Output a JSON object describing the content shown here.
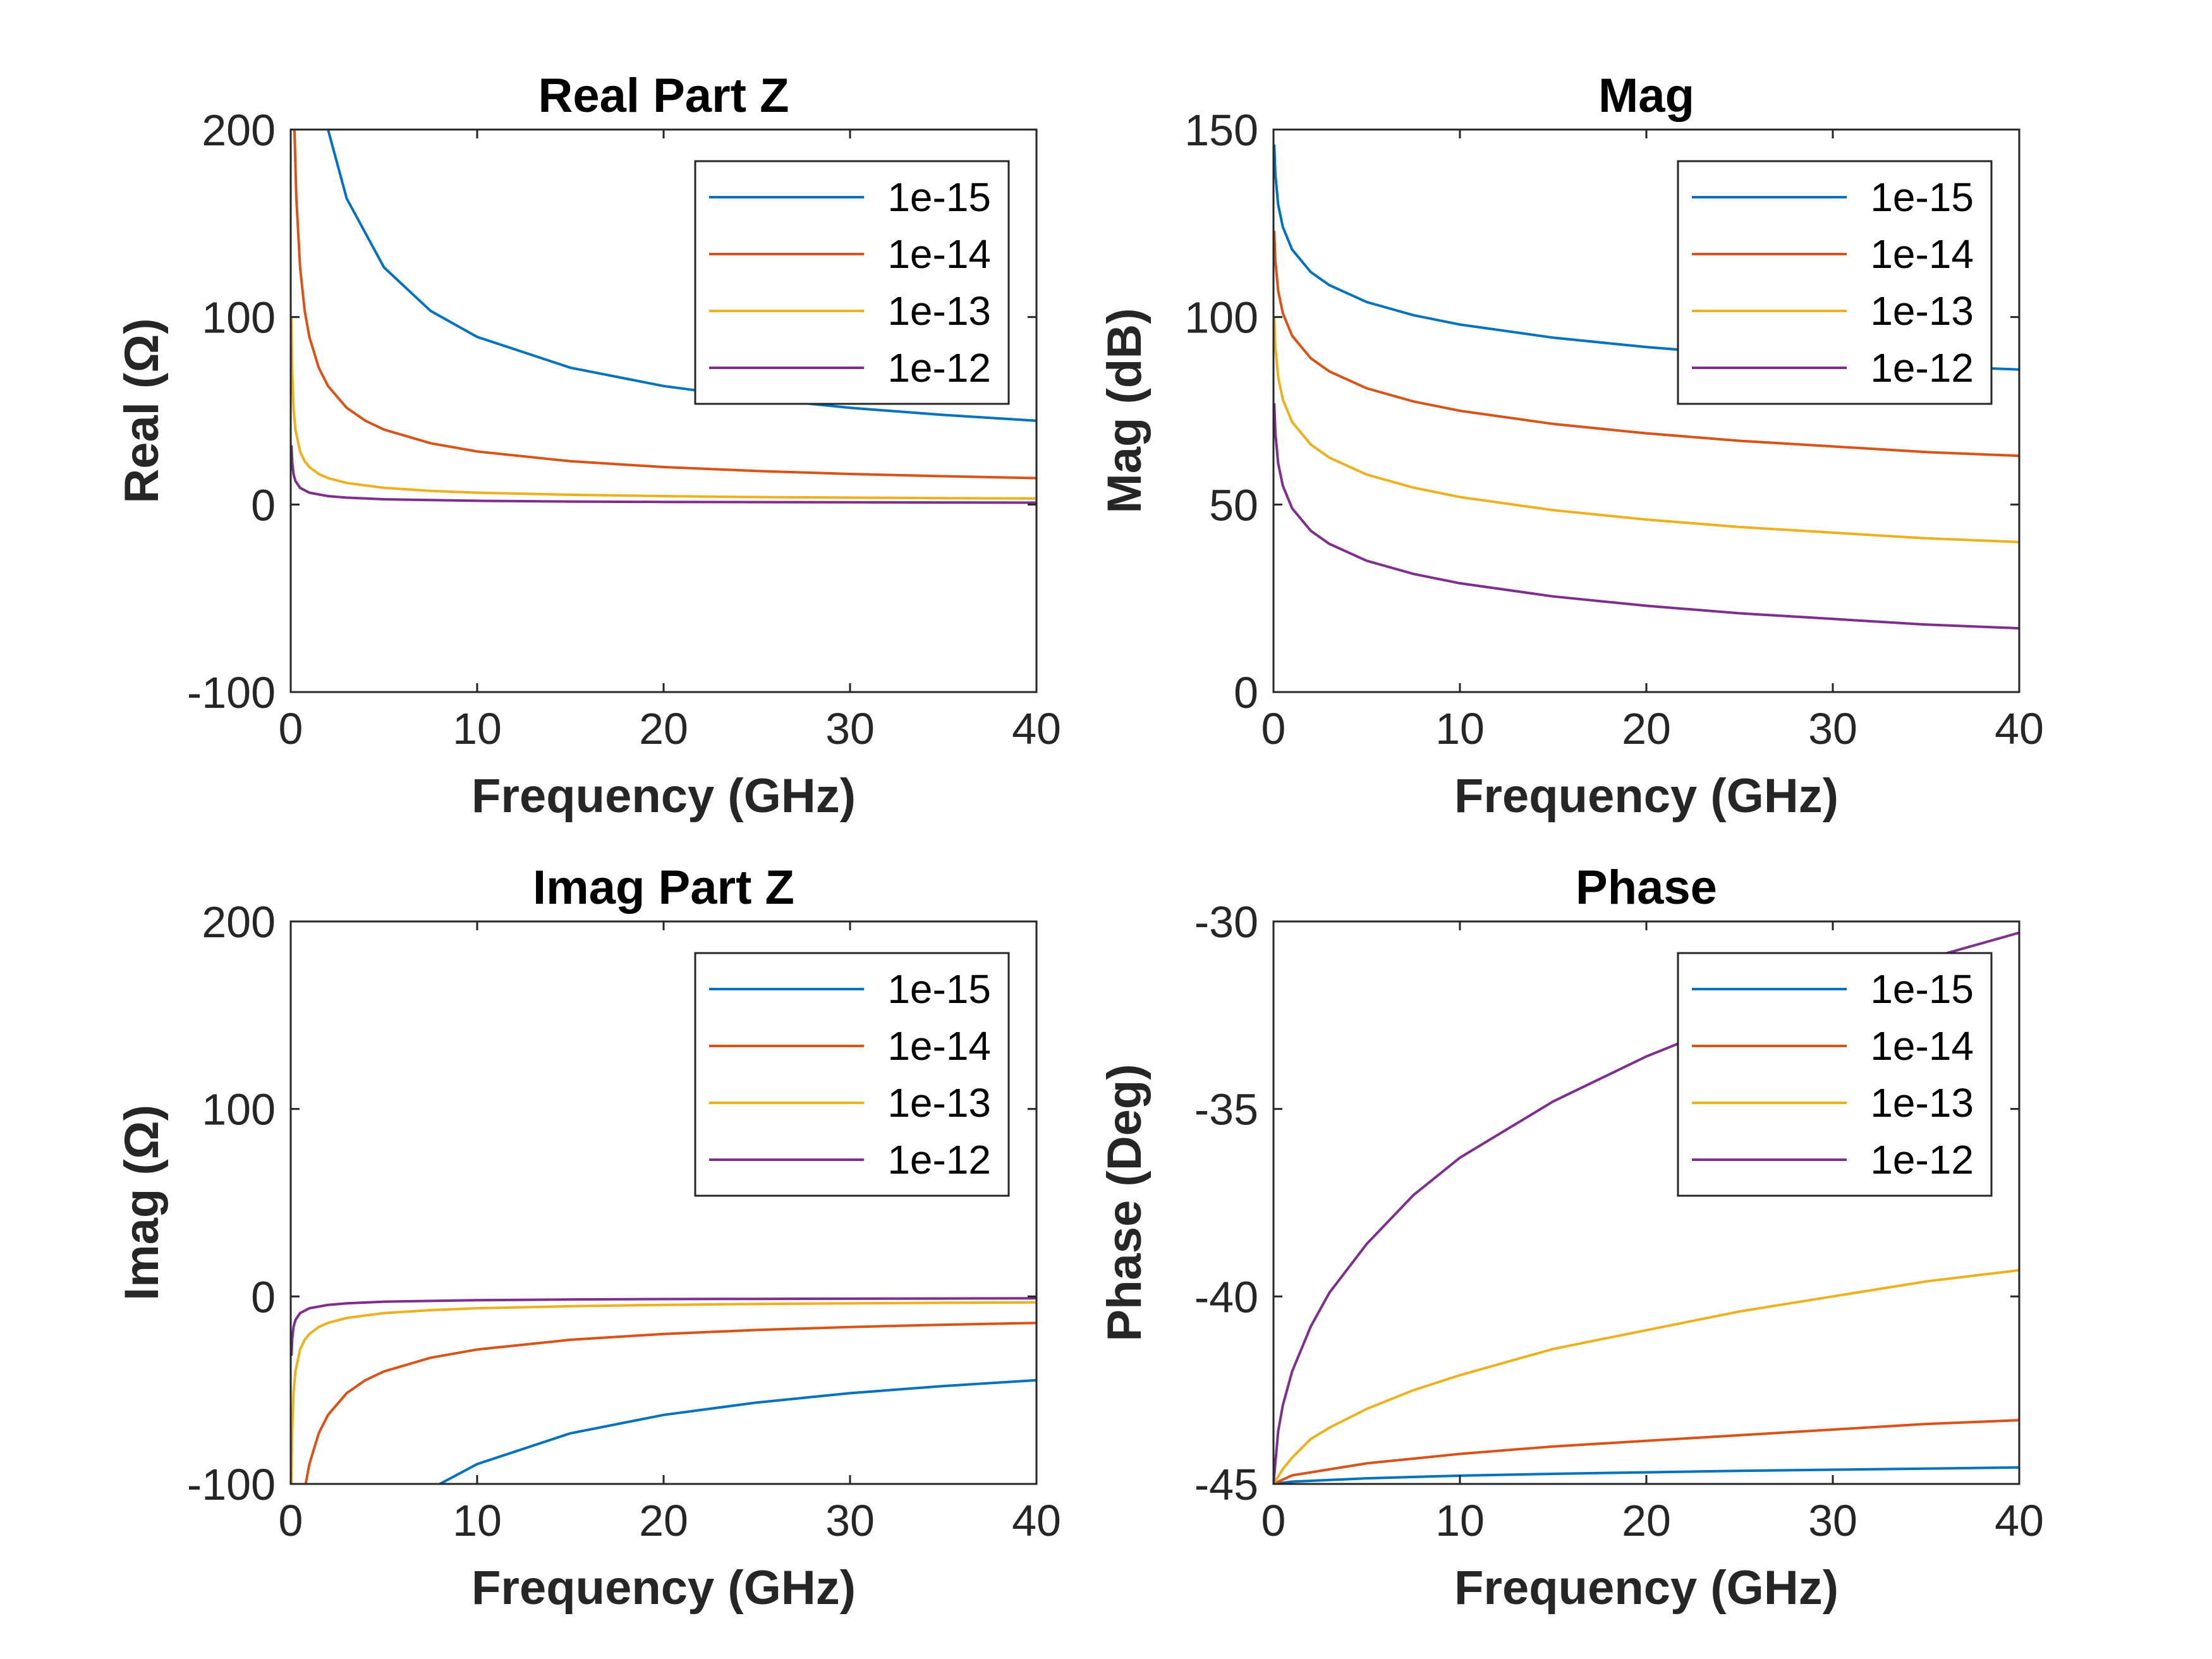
{
  "chart_data": [
    {
      "type": "line",
      "title": "Real Part Z",
      "xlabel": "Frequency (GHz)",
      "ylabel": "Real (Ω)",
      "xlim": [
        0,
        40
      ],
      "ylim": [
        -100,
        200
      ],
      "xticks": [
        "0",
        "10",
        "20",
        "30",
        "40"
      ],
      "yticks": [
        "-100",
        "0",
        "100",
        "200"
      ],
      "legend_position": "top-right",
      "series": [
        {
          "name": "1e-15",
          "color": "#0072BD",
          "points": [
            [
              2.0,
              200
            ],
            [
              3,
              163.3
            ],
            [
              5,
              126.5
            ],
            [
              7.5,
              103.3
            ],
            [
              10,
              89.4
            ],
            [
              15,
              73
            ],
            [
              20,
              63.2
            ],
            [
              25,
              56.6
            ],
            [
              30,
              51.6
            ],
            [
              35,
              47.8
            ],
            [
              40,
              44.7
            ]
          ]
        },
        {
          "name": "1e-14",
          "color": "#D95319",
          "points": [
            [
              0.2,
              200
            ],
            [
              0.3,
              163.3
            ],
            [
              0.5,
              126.5
            ],
            [
              0.75,
              103.3
            ],
            [
              1,
              89.4
            ],
            [
              1.5,
              73
            ],
            [
              2,
              63.2
            ],
            [
              3,
              51.6
            ],
            [
              4,
              44.7
            ],
            [
              5,
              40
            ],
            [
              7.5,
              32.7
            ],
            [
              10,
              28.3
            ],
            [
              15,
              23.1
            ],
            [
              20,
              20
            ],
            [
              25,
              17.9
            ],
            [
              30,
              16.3
            ],
            [
              35,
              15.1
            ],
            [
              40,
              14.1
            ]
          ]
        },
        {
          "name": "1e-13",
          "color": "#EDB120",
          "points": [
            [
              0.04,
              100
            ],
            [
              0.08,
              70.7
            ],
            [
              0.15,
              51.6
            ],
            [
              0.25,
              40
            ],
            [
              0.5,
              28.3
            ],
            [
              0.75,
              23.1
            ],
            [
              1,
              20
            ],
            [
              1.5,
              16.3
            ],
            [
              2,
              14.1
            ],
            [
              3,
              11.5
            ],
            [
              5,
              8.9
            ],
            [
              7.5,
              7.3
            ],
            [
              10,
              6.3
            ],
            [
              15,
              5.2
            ],
            [
              20,
              4.5
            ],
            [
              25,
              4
            ],
            [
              30,
              3.7
            ],
            [
              35,
              3.4
            ],
            [
              40,
              3.2
            ]
          ]
        },
        {
          "name": "1e-12",
          "color": "#7E2F8E",
          "points": [
            [
              0.04,
              31.6
            ],
            [
              0.08,
              22.4
            ],
            [
              0.15,
              16.3
            ],
            [
              0.25,
              12.6
            ],
            [
              0.5,
              8.9
            ],
            [
              1,
              6.3
            ],
            [
              2,
              4.5
            ],
            [
              3,
              3.7
            ],
            [
              5,
              2.8
            ],
            [
              10,
              2
            ],
            [
              15,
              1.6
            ],
            [
              20,
              1.4
            ],
            [
              25,
              1.3
            ],
            [
              30,
              1.2
            ],
            [
              35,
              1.1
            ],
            [
              40,
              1
            ]
          ]
        }
      ]
    },
    {
      "type": "line",
      "title": "Mag",
      "xlabel": "Frequency (GHz)",
      "ylabel": "Mag (dB)",
      "xlim": [
        0,
        40
      ],
      "ylim": [
        0,
        150
      ],
      "xticks": [
        "0",
        "10",
        "20",
        "30",
        "40"
      ],
      "yticks": [
        "0",
        "50",
        "100",
        "150"
      ],
      "legend_position": "top-right",
      "series": [
        {
          "name": "1e-15",
          "color": "#0072BD",
          "points": [
            [
              0.04,
              146
            ],
            [
              0.1,
              138
            ],
            [
              0.25,
              130
            ],
            [
              0.5,
              124
            ],
            [
              1,
              118
            ],
            [
              2,
              112
            ],
            [
              3,
              108.5
            ],
            [
              5,
              104
            ],
            [
              7.5,
              100.5
            ],
            [
              10,
              98
            ],
            [
              15,
              94.5
            ],
            [
              20,
              92
            ],
            [
              25,
              90
            ],
            [
              30,
              88.5
            ],
            [
              35,
              87
            ],
            [
              40,
              86
            ]
          ]
        },
        {
          "name": "1e-14",
          "color": "#D95319",
          "points": [
            [
              0.04,
              123
            ],
            [
              0.1,
              115
            ],
            [
              0.25,
              107
            ],
            [
              0.5,
              101
            ],
            [
              1,
              95
            ],
            [
              2,
              89
            ],
            [
              3,
              85.5
            ],
            [
              5,
              81
            ],
            [
              7.5,
              77.5
            ],
            [
              10,
              75
            ],
            [
              15,
              71.5
            ],
            [
              20,
              69
            ],
            [
              25,
              67
            ],
            [
              30,
              65.5
            ],
            [
              35,
              64
            ],
            [
              40,
              63
            ]
          ]
        },
        {
          "name": "1e-13",
          "color": "#EDB120",
          "points": [
            [
              0.04,
              100
            ],
            [
              0.1,
              92
            ],
            [
              0.25,
              84
            ],
            [
              0.5,
              78
            ],
            [
              1,
              72
            ],
            [
              2,
              66
            ],
            [
              3,
              62.5
            ],
            [
              5,
              58
            ],
            [
              7.5,
              54.5
            ],
            [
              10,
              52
            ],
            [
              15,
              48.5
            ],
            [
              20,
              46
            ],
            [
              25,
              44
            ],
            [
              30,
              42.5
            ],
            [
              35,
              41
            ],
            [
              40,
              40
            ]
          ]
        },
        {
          "name": "1e-12",
          "color": "#7E2F8E",
          "points": [
            [
              0.04,
              77
            ],
            [
              0.1,
              69
            ],
            [
              0.25,
              61
            ],
            [
              0.5,
              55
            ],
            [
              1,
              49
            ],
            [
              2,
              43
            ],
            [
              3,
              39.5
            ],
            [
              5,
              35
            ],
            [
              7.5,
              31.5
            ],
            [
              10,
              29
            ],
            [
              15,
              25.5
            ],
            [
              20,
              23
            ],
            [
              25,
              21
            ],
            [
              30,
              19.5
            ],
            [
              35,
              18
            ],
            [
              40,
              17
            ]
          ]
        }
      ]
    },
    {
      "type": "line",
      "title": "Imag Part Z",
      "xlabel": "Frequency (GHz)",
      "ylabel": "Imag (Ω)",
      "xlim": [
        0,
        40
      ],
      "ylim": [
        -100,
        200
      ],
      "xticks": [
        "0",
        "10",
        "20",
        "30",
        "40"
      ],
      "yticks": [
        "-100",
        "0",
        "100",
        "200"
      ],
      "legend_position": "top-right",
      "series": [
        {
          "name": "1e-15",
          "color": "#0072BD",
          "points": [
            [
              8,
              -100
            ],
            [
              10,
              -89.4
            ],
            [
              15,
              -73
            ],
            [
              20,
              -63.2
            ],
            [
              25,
              -56.6
            ],
            [
              30,
              -51.6
            ],
            [
              35,
              -47.8
            ],
            [
              40,
              -44.7
            ]
          ]
        },
        {
          "name": "1e-14",
          "color": "#D95319",
          "points": [
            [
              0.8,
              -100
            ],
            [
              1,
              -89.4
            ],
            [
              1.5,
              -73
            ],
            [
              2,
              -63.2
            ],
            [
              3,
              -51.6
            ],
            [
              4,
              -44.7
            ],
            [
              5,
              -40
            ],
            [
              7.5,
              -32.7
            ],
            [
              10,
              -28.3
            ],
            [
              15,
              -23.1
            ],
            [
              20,
              -20
            ],
            [
              25,
              -17.9
            ],
            [
              30,
              -16.3
            ],
            [
              35,
              -15.1
            ],
            [
              40,
              -14.1
            ]
          ]
        },
        {
          "name": "1e-13",
          "color": "#EDB120",
          "points": [
            [
              0.04,
              -100
            ],
            [
              0.08,
              -70.7
            ],
            [
              0.15,
              -51.6
            ],
            [
              0.25,
              -40
            ],
            [
              0.5,
              -28.3
            ],
            [
              0.75,
              -23.1
            ],
            [
              1,
              -20
            ],
            [
              1.5,
              -16.3
            ],
            [
              2,
              -14.1
            ],
            [
              3,
              -11.5
            ],
            [
              5,
              -8.9
            ],
            [
              7.5,
              -7.3
            ],
            [
              10,
              -6.3
            ],
            [
              15,
              -5.2
            ],
            [
              20,
              -4.5
            ],
            [
              25,
              -4
            ],
            [
              30,
              -3.7
            ],
            [
              35,
              -3.4
            ],
            [
              40,
              -3.2
            ]
          ]
        },
        {
          "name": "1e-12",
          "color": "#7E2F8E",
          "points": [
            [
              0.04,
              -31.6
            ],
            [
              0.08,
              -22.4
            ],
            [
              0.15,
              -16.3
            ],
            [
              0.25,
              -12.6
            ],
            [
              0.5,
              -8.9
            ],
            [
              1,
              -6.3
            ],
            [
              2,
              -4.5
            ],
            [
              3,
              -3.7
            ],
            [
              5,
              -2.8
            ],
            [
              10,
              -2
            ],
            [
              15,
              -1.6
            ],
            [
              20,
              -1.4
            ],
            [
              25,
              -1.3
            ],
            [
              30,
              -1.2
            ],
            [
              35,
              -1.1
            ],
            [
              40,
              -1
            ]
          ]
        }
      ]
    },
    {
      "type": "line",
      "title": "Phase",
      "xlabel": "Frequency (GHz)",
      "ylabel": "Phase (Deg)",
      "xlim": [
        0,
        40
      ],
      "ylim": [
        -45,
        -30
      ],
      "xticks": [
        "0",
        "10",
        "20",
        "30",
        "40"
      ],
      "yticks": [
        "-45",
        "-40",
        "-35",
        "-30"
      ],
      "legend_position": "top-right",
      "series": [
        {
          "name": "1e-15",
          "color": "#0072BD",
          "points": [
            [
              0,
              -45
            ],
            [
              1,
              -44.94
            ],
            [
              5,
              -44.85
            ],
            [
              10,
              -44.78
            ],
            [
              15,
              -44.73
            ],
            [
              20,
              -44.69
            ],
            [
              25,
              -44.65
            ],
            [
              30,
              -44.62
            ],
            [
              35,
              -44.59
            ],
            [
              40,
              -44.56
            ]
          ]
        },
        {
          "name": "1e-14",
          "color": "#D95319",
          "points": [
            [
              0,
              -45
            ],
            [
              1,
              -44.77
            ],
            [
              5,
              -44.45
            ],
            [
              10,
              -44.2
            ],
            [
              15,
              -44
            ],
            [
              20,
              -43.85
            ],
            [
              25,
              -43.7
            ],
            [
              30,
              -43.55
            ],
            [
              35,
              -43.4
            ],
            [
              40,
              -43.3
            ]
          ]
        },
        {
          "name": "1e-13",
          "color": "#EDB120",
          "points": [
            [
              0,
              -45
            ],
            [
              0.5,
              -44.6
            ],
            [
              1,
              -44.3
            ],
            [
              2,
              -43.8
            ],
            [
              3,
              -43.5
            ],
            [
              5,
              -43.0
            ],
            [
              7.5,
              -42.5
            ],
            [
              10,
              -42.1
            ],
            [
              15,
              -41.4
            ],
            [
              20,
              -40.9
            ],
            [
              25,
              -40.4
            ],
            [
              30,
              -40.0
            ],
            [
              35,
              -39.6
            ],
            [
              40,
              -39.3
            ]
          ]
        },
        {
          "name": "1e-12",
          "color": "#7E2F8E",
          "points": [
            [
              0,
              -45
            ],
            [
              0.25,
              -43.6
            ],
            [
              0.5,
              -42.9
            ],
            [
              1,
              -42
            ],
            [
              2,
              -40.8
            ],
            [
              3,
              -39.9
            ],
            [
              5,
              -38.6
            ],
            [
              7.5,
              -37.3
            ],
            [
              10,
              -36.3
            ],
            [
              15,
              -34.8
            ],
            [
              20,
              -33.6
            ],
            [
              25,
              -32.6
            ],
            [
              30,
              -31.7
            ],
            [
              35,
              -31
            ],
            [
              40,
              -30.3
            ]
          ]
        }
      ]
    }
  ]
}
